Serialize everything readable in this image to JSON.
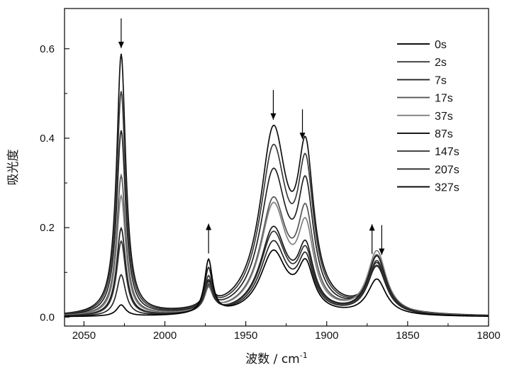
{
  "chart_data": {
    "type": "line",
    "xlabel": "波数",
    "xunit": "cm",
    "xunit_exponent": "-1",
    "ylabel": "吸光度",
    "xlim": [
      2062,
      1800
    ],
    "ylim": [
      -0.02,
      0.69
    ],
    "x_reversed": true,
    "x_ticks": [
      2050,
      2000,
      1950,
      1900,
      1850,
      1800
    ],
    "y_ticks": [
      0.0,
      0.2,
      0.4,
      0.6
    ],
    "y_tick_labels": [
      "0.0",
      "0.2",
      "0.4",
      "0.6"
    ],
    "grid": false,
    "legend_position": "top-right",
    "series": [
      {
        "name": "0s",
        "color": "#111111",
        "base": 0.0,
        "peaks": [
          [
            2027,
            0.583,
            3.4
          ],
          [
            1973,
            0.05,
            3
          ],
          [
            1933,
            0.4,
            10
          ],
          [
            1913,
            0.32,
            6
          ],
          [
            1869,
            0.1,
            7
          ]
        ]
      },
      {
        "name": "2s",
        "color": "#3a3a3a",
        "base": 0.0,
        "peaks": [
          [
            2027,
            0.5,
            3.4
          ],
          [
            1973,
            0.05,
            3
          ],
          [
            1933,
            0.36,
            10
          ],
          [
            1913,
            0.29,
            6
          ],
          [
            1869,
            0.1,
            7
          ]
        ]
      },
      {
        "name": "7s",
        "color": "#222222",
        "base": 0.0,
        "peaks": [
          [
            2027,
            0.413,
            3.4
          ],
          [
            1973,
            0.05,
            3
          ],
          [
            1933,
            0.31,
            10
          ],
          [
            1913,
            0.25,
            6
          ],
          [
            1869,
            0.11,
            7
          ]
        ]
      },
      {
        "name": "17s",
        "color": "#555555",
        "base": 0.0,
        "peaks": [
          [
            2027,
            0.313,
            3.4
          ],
          [
            1973,
            0.05,
            3
          ],
          [
            1933,
            0.25,
            10
          ],
          [
            1913,
            0.2,
            6
          ],
          [
            1869,
            0.13,
            7
          ]
        ]
      },
      {
        "name": "37s",
        "color": "#808080",
        "base": 0.0,
        "peaks": [
          [
            2027,
            0.268,
            3.4
          ],
          [
            1973,
            0.06,
            3
          ],
          [
            1933,
            0.24,
            10
          ],
          [
            1913,
            0.17,
            6
          ],
          [
            1869,
            0.14,
            7
          ]
        ]
      },
      {
        "name": "87s",
        "color": "#1a1a1a",
        "base": 0.0,
        "peaks": [
          [
            2027,
            0.196,
            3.4
          ],
          [
            1973,
            0.07,
            3
          ],
          [
            1933,
            0.19,
            10
          ],
          [
            1913,
            0.13,
            6
          ],
          [
            1869,
            0.13,
            7
          ]
        ]
      },
      {
        "name": "147s",
        "color": "#333333",
        "base": 0.0,
        "peaks": [
          [
            2027,
            0.167,
            3.4
          ],
          [
            1973,
            0.08,
            3
          ],
          [
            1933,
            0.18,
            10
          ],
          [
            1913,
            0.12,
            6
          ],
          [
            1869,
            0.12,
            7
          ]
        ]
      },
      {
        "name": "207s",
        "color": "#262626",
        "base": 0.0,
        "peaks": [
          [
            2027,
            0.092,
            3.4
          ],
          [
            1973,
            0.1,
            3
          ],
          [
            1933,
            0.16,
            10
          ],
          [
            1913,
            0.11,
            6
          ],
          [
            1869,
            0.11,
            7
          ]
        ]
      },
      {
        "name": "327s",
        "color": "#000000",
        "base": 0.0,
        "peaks": [
          [
            2027,
            0.025,
            3.4
          ],
          [
            1973,
            0.12,
            3
          ],
          [
            1933,
            0.14,
            10
          ],
          [
            1913,
            0.1,
            6
          ],
          [
            1869,
            0.08,
            7
          ]
        ]
      }
    ],
    "arrows": [
      {
        "x": 2027,
        "direction": "down"
      },
      {
        "x": 1973,
        "direction": "up"
      },
      {
        "x": 1933,
        "direction": "down"
      },
      {
        "x": 1915,
        "direction": "down"
      },
      {
        "x": 1872,
        "direction": "up"
      },
      {
        "x": 1866,
        "direction": "down"
      }
    ]
  }
}
